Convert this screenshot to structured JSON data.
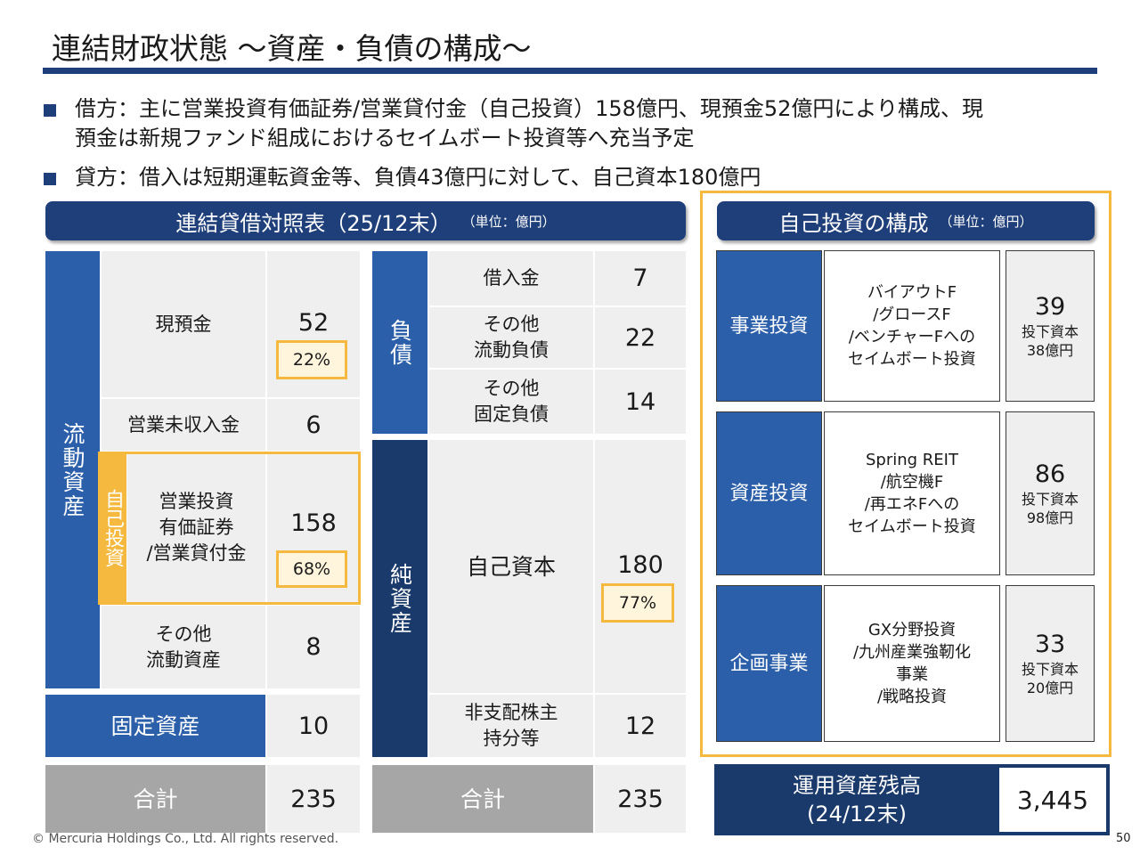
{
  "page": {
    "title": "連結財政状態 ～資産・負債の構成～",
    "bullets": [
      "借方：主に営業投資有価証券/営業貸付金（自己投資）158億円、現預金52億円により構成、現",
      "預金は新規ファンド組成におけるセイムボート投資等へ充当予定",
      "貸方：借入は短期運転資金等、負債43億円に対して、自己資本180億円"
    ],
    "footer": "© Mercuria Holdings Co., Ltd. All rights reserved.",
    "page_number": "50"
  },
  "bs": {
    "header": "連結貸借対照表（25/12末）",
    "unit": "（単位：億円）",
    "current_assets_label": "流動資産",
    "self_invest_label": "自己投資",
    "assets": [
      {
        "label": "現預金",
        "value": "52",
        "pct": "22%"
      },
      {
        "label": "営業未収入金",
        "value": "6"
      },
      {
        "label": "営業投資\n有価証券\n/営業貸付金",
        "value": "158",
        "pct": "68%"
      },
      {
        "label": "その他\n流動資産",
        "value": "8"
      }
    ],
    "fixed_assets": {
      "label": "固定資産",
      "value": "10"
    },
    "total_left": {
      "label": "合計",
      "value": "235"
    },
    "liabilities_label": "負債",
    "liabilities": [
      {
        "label": "借入金",
        "value": "7"
      },
      {
        "label": "その他\n流動負債",
        "value": "22"
      },
      {
        "label": "その他\n固定負債",
        "value": "14"
      }
    ],
    "net_assets_label": "純資産",
    "equity": {
      "label": "自己資本",
      "value": "180",
      "pct": "77%"
    },
    "nci": {
      "label": "非支配株主\n持分等",
      "value": "12"
    },
    "total_right": {
      "label": "合計",
      "value": "235"
    }
  },
  "invest": {
    "header": "自己投資の構成",
    "unit": "（単位：億円）",
    "rows": [
      {
        "category": "事業投資",
        "detail": "バイアウトF\n/グロースF\n/ベンチャーFへの\nセイムボート投資",
        "value": "39",
        "sub1": "投下資本",
        "sub2": "38億円"
      },
      {
        "category": "資産投資",
        "detail": "Spring REIT\n/航空機F\n/再エネFへの\nセイムボート投資",
        "value": "86",
        "sub1": "投下資本",
        "sub2": "98億円"
      },
      {
        "category": "企画事業",
        "detail": "GX分野投資\n/九州産業強靭化\n事業\n/戦略投資",
        "value": "33",
        "sub1": "投下資本",
        "sub2": "20億円"
      }
    ],
    "aum": {
      "label1": "運用資産残高",
      "label2": "(24/12末)",
      "value": "3,445"
    }
  },
  "colors": {
    "navy": "#1f3f7a",
    "blue": "#2c5faa",
    "yellow": "#f4b93e",
    "gray": "#a6a6a6"
  }
}
